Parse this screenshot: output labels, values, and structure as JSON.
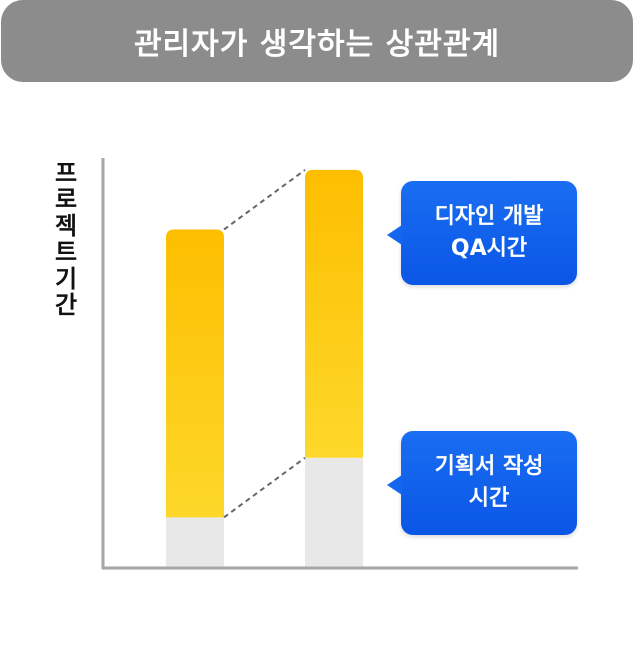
{
  "header": {
    "title": "관리자가 생각하는 상관관계"
  },
  "chart_data": {
    "type": "bar",
    "stacked": true,
    "ylabel": "프로젝트기간",
    "xlabel": "",
    "categories": [
      "",
      ""
    ],
    "series": [
      {
        "values": [
          1.0,
          2.2
        ]
      },
      {
        "values": [
          5.8,
          5.8
        ]
      }
    ],
    "ylim": [
      0,
      8.2
    ],
    "grid": false,
    "colors": {
      "bottom": "#e8e8e8",
      "top_start": "#fdd82a",
      "top_end": "#fdbe00",
      "connector": "#666666",
      "axis": "#a6a6a6"
    },
    "annotations": [
      {
        "lines": [
          "디자인 개발",
          "QA시간"
        ],
        "target": "top"
      },
      {
        "lines": [
          "기획서 작성",
          "시간"
        ],
        "target": "bottom"
      }
    ]
  }
}
